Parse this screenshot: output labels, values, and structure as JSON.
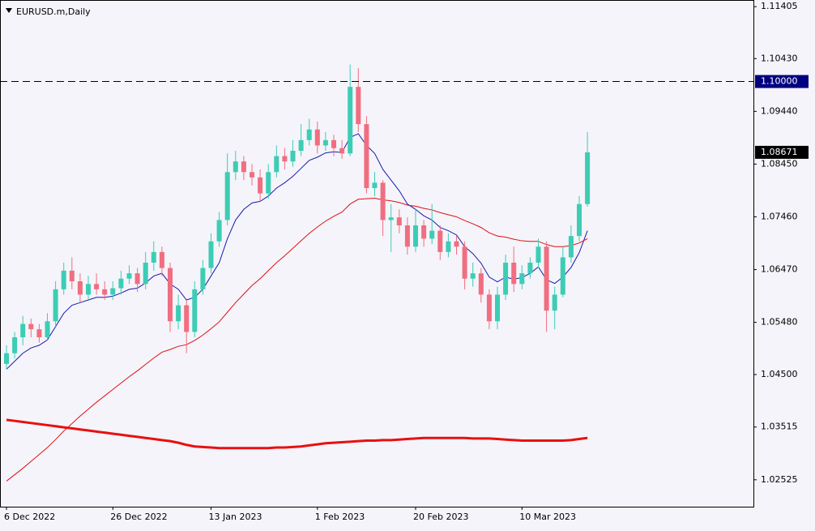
{
  "chart_data": {
    "type": "candlestick",
    "title": "EURUSD.m,Daily",
    "categories": [
      "6 Dec 2022",
      null,
      null,
      null,
      null,
      null,
      null,
      null,
      null,
      null,
      null,
      null,
      null,
      "26 Dec 2022",
      null,
      null,
      null,
      null,
      null,
      null,
      null,
      null,
      null,
      null,
      null,
      "13 Jan 2023",
      null,
      null,
      null,
      null,
      null,
      null,
      null,
      null,
      null,
      null,
      null,
      null,
      "1 Feb 2023",
      null,
      null,
      null,
      null,
      null,
      null,
      null,
      null,
      null,
      null,
      null,
      "20 Feb 2023",
      null,
      null,
      null,
      null,
      null,
      null,
      null,
      null,
      null,
      null,
      null,
      null,
      "10 Mar 2023",
      null,
      null,
      null,
      null,
      null,
      null,
      null,
      null
    ],
    "open": [
      1.047,
      1.049,
      1.052,
      1.0545,
      1.0535,
      1.052,
      1.055,
      1.061,
      1.0645,
      1.0625,
      1.06,
      1.062,
      1.061,
      1.06,
      1.0612,
      1.063,
      1.064,
      1.062,
      1.066,
      1.068,
      1.065,
      1.055,
      1.058,
      1.053,
      1.061,
      1.065,
      1.07,
      1.074,
      1.083,
      1.085,
      1.083,
      1.082,
      1.079,
      1.083,
      1.086,
      1.085,
      1.087,
      1.089,
      1.091,
      1.088,
      1.089,
      1.0875,
      1.0865,
      1.099,
      1.092,
      1.08,
      1.081,
      1.074,
      1.0745,
      1.073,
      1.069,
      1.073,
      1.0705,
      1.072,
      1.068,
      1.07,
      1.069,
      1.063,
      1.064,
      1.06,
      1.055,
      1.06,
      1.066,
      1.062,
      1.064,
      1.066,
      1.069,
      1.057,
      1.06,
      1.067,
      1.071,
      1.077
    ],
    "high": [
      1.0505,
      1.053,
      1.056,
      1.0555,
      1.0545,
      1.0565,
      1.0625,
      1.066,
      1.067,
      1.064,
      1.0635,
      1.064,
      1.0625,
      1.0625,
      1.0645,
      1.0655,
      1.065,
      1.068,
      1.07,
      1.069,
      1.066,
      1.06,
      1.059,
      1.0625,
      1.0665,
      1.0715,
      1.0755,
      1.0865,
      1.087,
      1.086,
      1.0845,
      1.0835,
      1.0845,
      1.088,
      1.0875,
      1.089,
      1.092,
      1.093,
      1.0925,
      1.0905,
      1.09,
      1.089,
      1.1032,
      1.1025,
      1.0935,
      1.083,
      1.0815,
      1.077,
      1.076,
      1.0745,
      1.076,
      1.074,
      1.077,
      1.073,
      1.0715,
      1.071,
      1.07,
      1.066,
      1.065,
      1.061,
      1.0615,
      1.0675,
      1.069,
      1.0655,
      1.067,
      1.0705,
      1.07,
      1.0615,
      1.069,
      1.073,
      1.0785,
      1.0905
    ],
    "low": [
      1.046,
      1.048,
      1.0505,
      1.052,
      1.051,
      1.0515,
      1.054,
      1.06,
      1.061,
      1.0585,
      1.059,
      1.06,
      1.059,
      1.059,
      1.06,
      1.062,
      1.0605,
      1.061,
      1.0645,
      1.0635,
      1.053,
      1.0535,
      1.049,
      1.052,
      1.06,
      1.064,
      1.069,
      1.073,
      1.0815,
      1.0815,
      1.0805,
      1.0775,
      1.078,
      1.082,
      1.0835,
      1.084,
      1.086,
      1.088,
      1.0865,
      1.087,
      1.086,
      1.0855,
      1.086,
      1.0905,
      1.079,
      1.0785,
      1.071,
      1.068,
      1.0715,
      1.0675,
      1.068,
      1.069,
      1.0695,
      1.0665,
      1.067,
      1.0675,
      1.061,
      1.0615,
      1.0585,
      1.0535,
      1.0535,
      1.059,
      1.0605,
      1.061,
      1.063,
      1.065,
      1.053,
      1.0535,
      1.0595,
      1.066,
      1.07,
      1.0765
    ],
    "close": [
      1.049,
      1.052,
      1.0545,
      1.0535,
      1.052,
      1.055,
      1.061,
      1.0645,
      1.0625,
      1.06,
      1.062,
      1.061,
      1.06,
      1.0612,
      1.063,
      1.064,
      1.062,
      1.066,
      1.068,
      1.065,
      1.055,
      1.058,
      1.053,
      1.061,
      1.065,
      1.07,
      1.074,
      1.083,
      1.085,
      1.083,
      1.082,
      1.079,
      1.083,
      1.086,
      1.085,
      1.087,
      1.089,
      1.091,
      1.088,
      1.089,
      1.0875,
      1.0865,
      1.099,
      1.092,
      1.08,
      1.081,
      1.074,
      1.0745,
      1.073,
      1.069,
      1.073,
      1.0705,
      1.072,
      1.068,
      1.07,
      1.069,
      1.063,
      1.064,
      1.06,
      1.055,
      1.06,
      1.066,
      1.062,
      1.064,
      1.066,
      1.069,
      1.057,
      1.06,
      1.067,
      1.071,
      1.077,
      1.0867
    ],
    "up_color": "#3ccdb4",
    "down_color": "#f06e80",
    "indicators": [
      {
        "color": "#1a1ab0",
        "width": 1,
        "values": [
          1.046,
          1.0475,
          1.049,
          1.05,
          1.0505,
          1.0515,
          1.054,
          1.0565,
          1.058,
          1.0585,
          1.059,
          1.0595,
          1.0595,
          1.0597,
          1.0603,
          1.061,
          1.0612,
          1.0622,
          1.0635,
          1.064,
          1.062,
          1.061,
          1.059,
          1.0595,
          1.061,
          1.0635,
          1.066,
          1.0705,
          1.074,
          1.076,
          1.0772,
          1.0775,
          1.0785,
          1.08,
          1.081,
          1.0822,
          1.0837,
          1.0852,
          1.0858,
          1.0866,
          1.0868,
          1.0867,
          1.0895,
          1.0902,
          1.088,
          1.0865,
          1.0835,
          1.0815,
          1.0795,
          1.077,
          1.076,
          1.0748,
          1.074,
          1.0726,
          1.072,
          1.0712,
          1.069,
          1.0677,
          1.0659,
          1.0633,
          1.0624,
          1.0633,
          1.0629,
          1.0632,
          1.064,
          1.0652,
          1.0628,
          1.0621,
          1.0633,
          1.0651,
          1.0679,
          1.072
        ]
      },
      {
        "color": "#e01010",
        "width": 1,
        "values": [
          1.025,
          1.0262,
          1.0274,
          1.0287,
          1.03,
          1.0313,
          1.0328,
          1.0344,
          1.0358,
          1.0372,
          1.0385,
          1.0398,
          1.041,
          1.0422,
          1.0434,
          1.0446,
          1.0457,
          1.0469,
          1.0481,
          1.0492,
          1.0497,
          1.0503,
          1.0506,
          1.0514,
          1.0524,
          1.0536,
          1.0549,
          1.0567,
          1.0585,
          1.0601,
          1.0617,
          1.063,
          1.0645,
          1.066,
          1.0673,
          1.0687,
          1.0701,
          1.0715,
          1.0727,
          1.0738,
          1.0747,
          1.0755,
          1.077,
          1.0779,
          1.078,
          1.0781,
          1.0778,
          1.0776,
          1.0773,
          1.0768,
          1.0766,
          1.0762,
          1.0759,
          1.0754,
          1.075,
          1.0746,
          1.0739,
          1.0733,
          1.0726,
          1.0716,
          1.071,
          1.0708,
          1.0704,
          1.0701,
          1.07,
          1.07,
          1.0694,
          1.069,
          1.069,
          1.0692,
          1.0697,
          1.0705
        ]
      },
      {
        "color": "#e81010",
        "width": 3,
        "values": [
          1.0365,
          1.0363,
          1.0361,
          1.0359,
          1.0357,
          1.0355,
          1.0353,
          1.0351,
          1.0349,
          1.0347,
          1.0345,
          1.0343,
          1.0341,
          1.0339,
          1.0337,
          1.0335,
          1.0333,
          1.0331,
          1.0329,
          1.0327,
          1.0325,
          1.0322,
          1.0318,
          1.0315,
          1.0314,
          1.0313,
          1.0312,
          1.0312,
          1.0312,
          1.0312,
          1.0312,
          1.0312,
          1.0312,
          1.0313,
          1.0313,
          1.0314,
          1.0315,
          1.0317,
          1.0319,
          1.0321,
          1.0322,
          1.0323,
          1.0324,
          1.0325,
          1.0326,
          1.0326,
          1.0327,
          1.0327,
          1.0328,
          1.0329,
          1.033,
          1.0331,
          1.0331,
          1.0331,
          1.0331,
          1.0331,
          1.0331,
          1.033,
          1.033,
          1.033,
          1.0329,
          1.0328,
          1.0327,
          1.0326,
          1.0326,
          1.0326,
          1.0326,
          1.0326,
          1.0326,
          1.0327,
          1.0329,
          1.0331
        ]
      }
    ],
    "level": {
      "value": 1.1,
      "label": "1.10000"
    },
    "last_price": 1.08671,
    "ylim": [
      1.0202,
      1.1153
    ],
    "yticks": [
      1.11405,
      {
        "value": 1.1043,
        "label": "1.10430"
      },
      {
        "value": 1.0944,
        "label": "1.09440"
      },
      {
        "value": 1.0845,
        "label": "1.08450"
      },
      {
        "value": 1.0746,
        "label": "1.07460"
      },
      {
        "value": 1.0647,
        "label": "1.06470"
      },
      {
        "value": 1.0548,
        "label": "1.05480"
      },
      {
        "value": 1.045,
        "label": "1.04500"
      },
      1.03515,
      1.02525
    ]
  }
}
